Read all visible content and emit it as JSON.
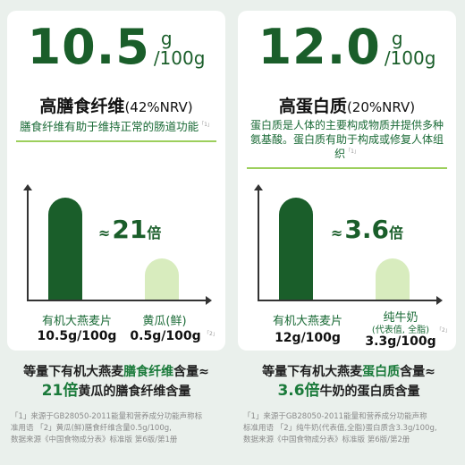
{
  "left": {
    "big_number": "10.5",
    "unit_top": "g",
    "unit_bottom": "/100g",
    "nutrient_name": "高膳食纤维",
    "nrv": "(42%NRV)",
    "nrv_sup": "",
    "description": "膳食纤维有助于维持正常的肠道功能",
    "desc_ref": "「1」",
    "ratio_prefix": "≈",
    "ratio_value": "21",
    "ratio_suffix": "倍",
    "main_label": "有机大燕麦片",
    "main_value": "10.5g/100g",
    "comp_label": "黄瓜(鲜)",
    "comp_value": "0.5g/100g",
    "comp_ref": "「2」",
    "summary_line1_a": "等量下有机大燕麦",
    "summary_line1_hl": "膳食纤维",
    "summary_line1_b": "含量≈",
    "summary_line2_big": "21倍",
    "summary_line2_rest": "黄瓜的膳食纤维含量",
    "footnote_line1": "「1」来源于GB28050-2011能量和营养成分功能声称标",
    "footnote_line2": "准用语 「2」黄瓜(鲜)膳食纤维含量0.5g/100g,",
    "footnote_line3": "数据来源《中国食物成分表》标准版 第6版/第1册"
  },
  "right": {
    "big_number": "12.0",
    "unit_top": "g",
    "unit_bottom": "/100g",
    "nutrient_name": "高蛋白质",
    "nrv": "(20%NRV)",
    "description": "蛋白质是人体的主要构成物质并提供多种氨基酸。蛋白质有助于构成或修复人体组织",
    "desc_ref": "「1」",
    "ratio_prefix": "≈",
    "ratio_value": "3.6",
    "ratio_suffix": "倍",
    "main_label": "有机大燕麦片",
    "main_value": "12g/100g",
    "comp_label": "纯牛奶",
    "comp_sublabel": "(代表值, 全脂)",
    "comp_value": "3.3g/100g",
    "comp_ref": "「2」",
    "summary_line1_a": "等量下有机大燕麦",
    "summary_line1_hl": "蛋白质",
    "summary_line1_b": "含量≈",
    "summary_line2_big": "3.6倍",
    "summary_line2_rest": "牛奶的蛋白质含量",
    "footnote_line1": "「1」来源于GB28050-2011能量和营养成分功能声称",
    "footnote_line2": "标准用语 「2」纯牛奶(代表值,全脂)蛋白质含3.3g/100g,",
    "footnote_line3": "数据来源《中国食物成分表》标准版 第6版/第2册"
  },
  "chart_data": [
    {
      "type": "bar",
      "categories": [
        "有机大燕麦片",
        "黄瓜(鲜)"
      ],
      "values": [
        10.5,
        0.5
      ],
      "title": "",
      "xlabel": "",
      "ylabel": ""
    },
    {
      "type": "bar",
      "categories": [
        "有机大燕麦片",
        "纯牛奶"
      ],
      "values": [
        12.0,
        3.3
      ],
      "title": "",
      "xlabel": "",
      "ylabel": ""
    }
  ],
  "colors": {
    "primary_green": "#1a5e2a",
    "light_green": "#d8ecbe",
    "accent_line": "#9ccf5c",
    "background": "#eaf0ec"
  }
}
